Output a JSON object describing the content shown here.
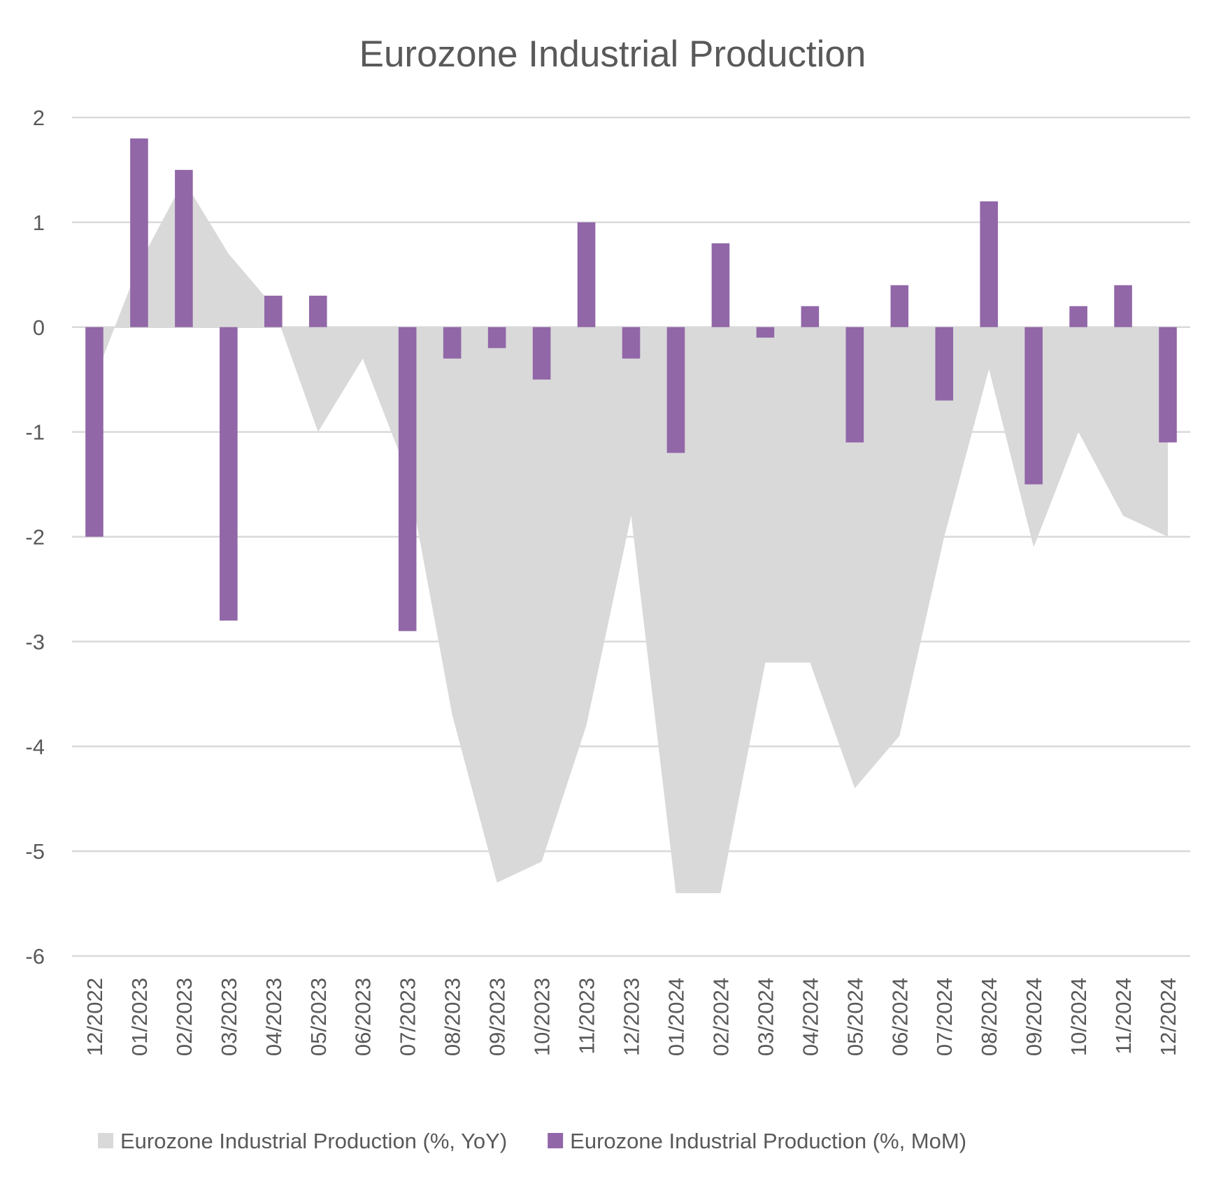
{
  "chart_data": {
    "type": "bar",
    "title": "Eurozone Industrial Production",
    "categories": [
      "12/2022",
      "01/2023",
      "02/2023",
      "03/2023",
      "04/2023",
      "05/2023",
      "06/2023",
      "07/2023",
      "08/2023",
      "09/2023",
      "10/2023",
      "11/2023",
      "12/2023",
      "01/2024",
      "02/2024",
      "03/2024",
      "04/2024",
      "05/2024",
      "06/2024",
      "07/2024",
      "08/2024",
      "09/2024",
      "10/2024",
      "11/2024",
      "12/2024"
    ],
    "series": [
      {
        "name": "Eurozone Industrial Production (%, YoY)",
        "type": "area",
        "color": "#d9d9d9",
        "values": [
          -0.5,
          0.6,
          1.4,
          0.7,
          0.2,
          -1.0,
          -0.3,
          -1.4,
          -3.7,
          -5.3,
          -5.1,
          -3.8,
          -1.8,
          -5.4,
          -5.4,
          -3.2,
          -3.2,
          -4.4,
          -3.9,
          -2.0,
          -0.4,
          -2.1,
          -1.0,
          -1.8,
          -2.0
        ]
      },
      {
        "name": "Eurozone Industrial Production (%, MoM)",
        "type": "bar",
        "color": "#9167a8",
        "values": [
          -2.0,
          1.8,
          1.5,
          -2.8,
          0.3,
          0.3,
          0,
          -2.9,
          -0.3,
          -0.2,
          -0.5,
          1.0,
          -0.3,
          -1.2,
          0.8,
          -0.1,
          0.2,
          -1.1,
          0.4,
          -0.7,
          1.2,
          -1.5,
          0.2,
          0.4,
          -1.1
        ]
      }
    ],
    "ylim": [
      -6,
      2
    ],
    "yticks": [
      -6,
      -5,
      -4,
      -3,
      -2,
      -1,
      0,
      1,
      2
    ],
    "grid": true,
    "legend": "bottom"
  }
}
